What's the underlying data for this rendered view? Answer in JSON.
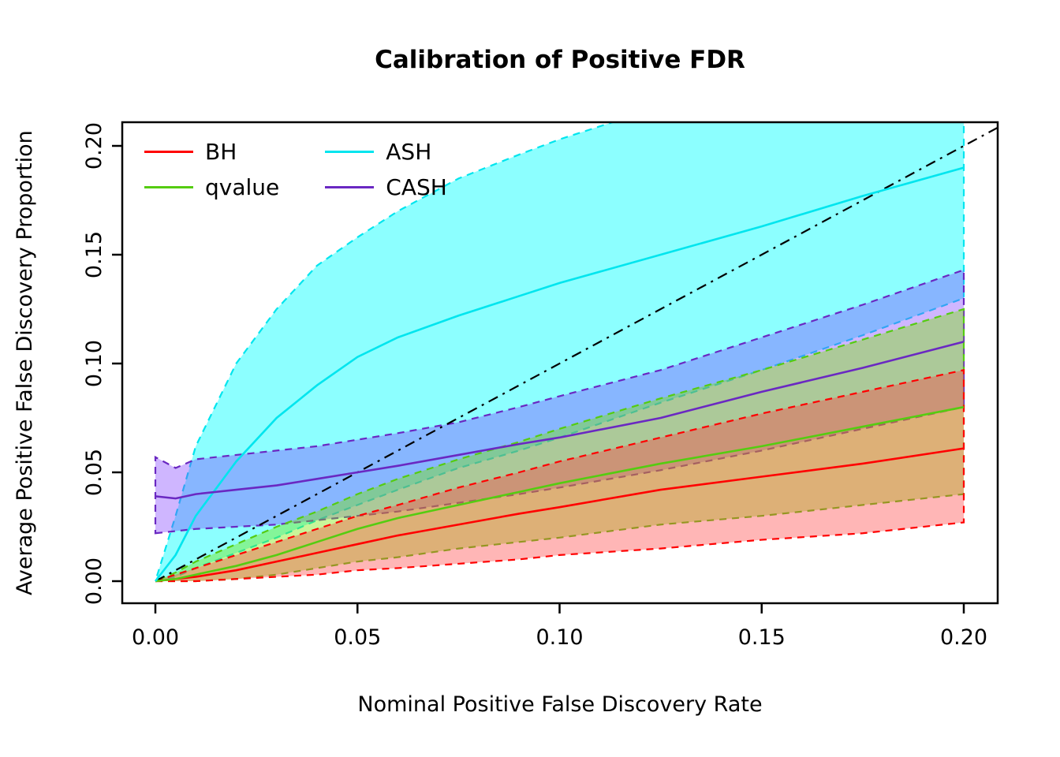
{
  "chart_data": {
    "type": "line",
    "title": "Calibration of Positive FDR",
    "xlabel": "Nominal Positive False Discovery Rate",
    "ylabel": "Average Positive False Discovery Proportion",
    "xlim": [
      0,
      0.2
    ],
    "ylim": [
      0,
      0.2
    ],
    "grid": false,
    "legend_position": "top-left",
    "xticks": {
      "values": [
        0,
        0.05,
        0.1,
        0.15,
        0.2
      ],
      "labels": [
        "0.00",
        "0.05",
        "0.10",
        "0.15",
        "0.20"
      ]
    },
    "yticks": {
      "values": [
        0,
        0.05,
        0.1,
        0.15,
        0.2
      ],
      "labels": [
        "0.00",
        "0.05",
        "0.10",
        "0.15",
        "0.20"
      ]
    },
    "reference_line": {
      "from": [
        0,
        0
      ],
      "to": [
        0.21,
        0.21
      ],
      "color": "#000000",
      "style": "dash-dot"
    },
    "x": [
      0,
      0.005,
      0.01,
      0.02,
      0.03,
      0.04,
      0.05,
      0.06,
      0.075,
      0.09,
      0.1,
      0.125,
      0.15,
      0.175,
      0.2
    ],
    "series": [
      {
        "name": "BH",
        "color": "#FF0000",
        "fill": "#FF4040",
        "fill_opacity": 0.38,
        "mean": [
          0,
          0.001,
          0.002,
          0.005,
          0.009,
          0.013,
          0.017,
          0.021,
          0.026,
          0.031,
          0.034,
          0.042,
          0.048,
          0.054,
          0.061
        ],
        "lower": [
          0,
          0,
          0,
          0.001,
          0.002,
          0.003,
          0.005,
          0.006,
          0.008,
          0.01,
          0.012,
          0.015,
          0.019,
          0.022,
          0.027
        ],
        "upper": [
          0,
          0.003,
          0.006,
          0.012,
          0.018,
          0.024,
          0.03,
          0.035,
          0.043,
          0.05,
          0.055,
          0.066,
          0.077,
          0.087,
          0.097
        ]
      },
      {
        "name": "qvalue",
        "color": "#55CC11",
        "fill": "#77E600",
        "fill_opacity": 0.4,
        "mean": [
          0,
          0.001,
          0.003,
          0.007,
          0.012,
          0.018,
          0.024,
          0.029,
          0.035,
          0.041,
          0.045,
          0.054,
          0.062,
          0.071,
          0.08
        ],
        "lower": [
          0,
          0,
          0,
          0.001,
          0.003,
          0.006,
          0.009,
          0.011,
          0.015,
          0.018,
          0.02,
          0.026,
          0.03,
          0.035,
          0.04
        ],
        "upper": [
          0,
          0.004,
          0.009,
          0.017,
          0.025,
          0.032,
          0.04,
          0.047,
          0.056,
          0.064,
          0.07,
          0.084,
          0.097,
          0.111,
          0.125
        ]
      },
      {
        "name": "ASH",
        "color": "#00E5EE",
        "fill": "#00FFFF",
        "fill_opacity": 0.45,
        "mean": [
          0,
          0.012,
          0.03,
          0.055,
          0.075,
          0.09,
          0.103,
          0.112,
          0.122,
          0.131,
          0.137,
          0.15,
          0.163,
          0.177,
          0.19
        ],
        "lower": [
          0,
          0.002,
          0.006,
          0.013,
          0.02,
          0.028,
          0.035,
          0.042,
          0.052,
          0.06,
          0.066,
          0.082,
          0.097,
          0.113,
          0.13
        ],
        "upper": [
          0,
          0.03,
          0.062,
          0.1,
          0.125,
          0.145,
          0.158,
          0.17,
          0.185,
          0.196,
          0.203,
          0.218,
          0.23,
          0.24,
          0.25
        ]
      },
      {
        "name": "CASH",
        "color": "#6A28C2",
        "fill": "#8040FF",
        "fill_opacity": 0.38,
        "mean": [
          0.039,
          0.038,
          0.04,
          0.042,
          0.044,
          0.047,
          0.05,
          0.053,
          0.058,
          0.063,
          0.066,
          0.075,
          0.087,
          0.098,
          0.11
        ],
        "lower": [
          0.022,
          0.023,
          0.024,
          0.025,
          0.026,
          0.028,
          0.03,
          0.032,
          0.036,
          0.04,
          0.043,
          0.051,
          0.06,
          0.07,
          0.08
        ],
        "upper": [
          0.057,
          0.052,
          0.056,
          0.058,
          0.06,
          0.062,
          0.065,
          0.068,
          0.073,
          0.08,
          0.085,
          0.097,
          0.112,
          0.127,
          0.143
        ]
      }
    ]
  }
}
